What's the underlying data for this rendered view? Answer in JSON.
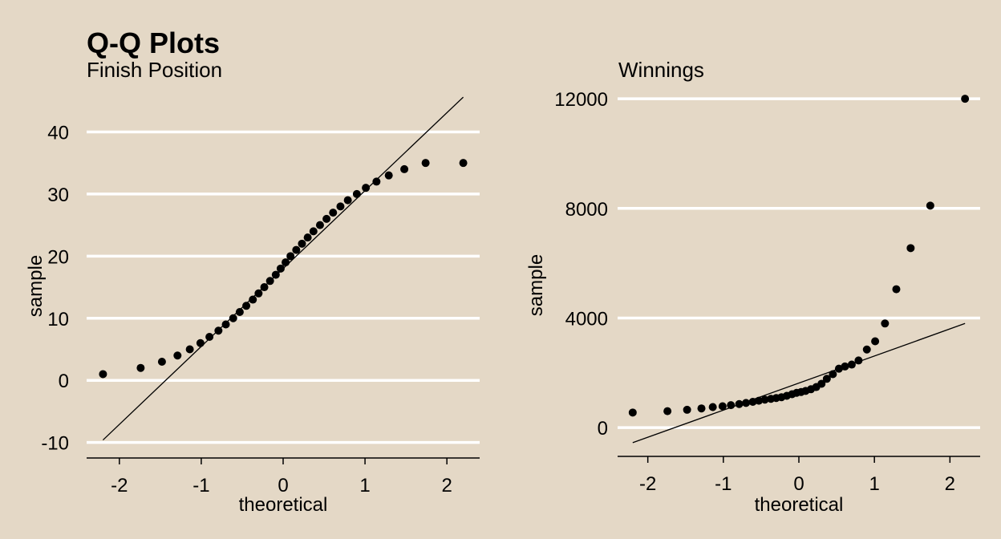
{
  "title": "Q-Q Plots",
  "chart_data": [
    {
      "type": "scatter",
      "subtitle": "Finish Position",
      "xlabel": "theoretical",
      "ylabel": "sample",
      "xlim": [
        -2.4,
        2.4
      ],
      "ylim": [
        -12.5,
        46
      ],
      "x_ticks": [
        -2,
        -1,
        0,
        1,
        2
      ],
      "y_ticks": [
        -10,
        0,
        10,
        20,
        30,
        40
      ],
      "grid": "horizontal major lines",
      "reference_line": {
        "x": [
          -2.2,
          2.2
        ],
        "y": [
          -9.6,
          45.6
        ]
      },
      "points": {
        "x": [
          -2.2,
          -1.74,
          -1.48,
          -1.29,
          -1.14,
          -1.01,
          -0.9,
          -0.79,
          -0.7,
          -0.61,
          -0.53,
          -0.45,
          -0.37,
          -0.3,
          -0.23,
          -0.16,
          -0.09,
          -0.03,
          0.03,
          0.09,
          0.16,
          0.23,
          0.3,
          0.37,
          0.45,
          0.53,
          0.61,
          0.7,
          0.79,
          0.9,
          1.01,
          1.14,
          1.29,
          1.48,
          1.74,
          2.2
        ],
        "y": [
          1,
          2,
          3,
          4,
          5,
          6,
          7,
          8,
          9,
          10,
          11,
          12,
          13,
          14,
          15,
          16,
          17,
          18,
          19,
          20,
          21,
          22,
          23,
          24,
          25,
          26,
          27,
          28,
          29,
          30,
          31,
          32,
          33,
          34,
          35,
          35
        ]
      }
    },
    {
      "type": "scatter",
      "subtitle": "Winnings",
      "xlabel": "theoretical",
      "ylabel": "sample",
      "xlim": [
        -2.4,
        2.4
      ],
      "ylim": [
        -1050,
        12150
      ],
      "x_ticks": [
        -2,
        -1,
        0,
        1,
        2
      ],
      "y_ticks": [
        0,
        4000,
        8000,
        12000
      ],
      "grid": "horizontal major lines",
      "reference_line": {
        "x": [
          -2.2,
          2.2
        ],
        "y": [
          -550,
          3800
        ]
      },
      "points": {
        "x": [
          -2.2,
          -1.74,
          -1.48,
          -1.29,
          -1.14,
          -1.01,
          -0.9,
          -0.79,
          -0.7,
          -0.61,
          -0.53,
          -0.45,
          -0.37,
          -0.3,
          -0.23,
          -0.16,
          -0.09,
          -0.03,
          0.03,
          0.09,
          0.16,
          0.23,
          0.3,
          0.37,
          0.45,
          0.53,
          0.61,
          0.7,
          0.79,
          0.9,
          1.01,
          1.14,
          1.29,
          1.48,
          1.74,
          2.2
        ],
        "y": [
          550,
          600,
          650,
          700,
          750,
          780,
          820,
          860,
          900,
          940,
          980,
          1020,
          1050,
          1080,
          1110,
          1160,
          1220,
          1270,
          1300,
          1340,
          1400,
          1480,
          1600,
          1780,
          1950,
          2150,
          2230,
          2300,
          2450,
          2850,
          3150,
          3800,
          5050,
          6550,
          8100,
          12000
        ]
      }
    }
  ]
}
